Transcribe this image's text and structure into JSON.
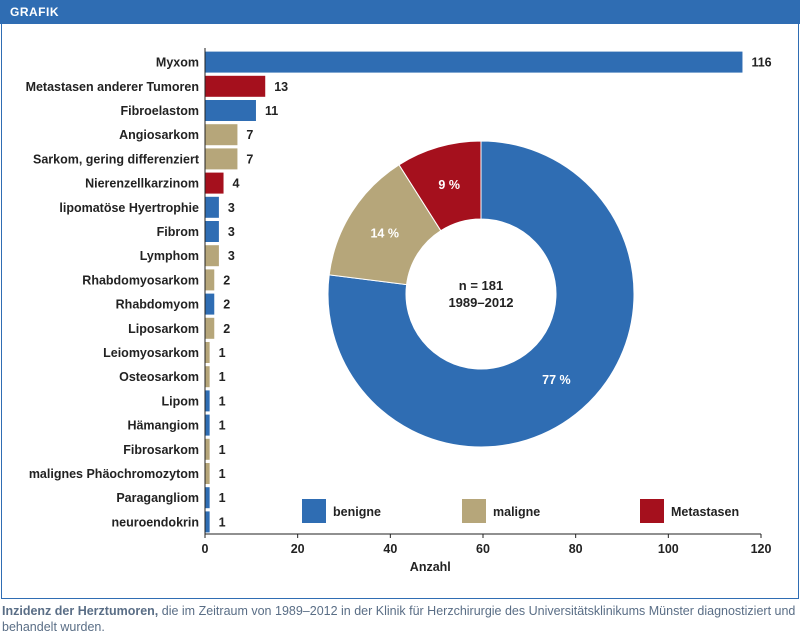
{
  "header": {
    "title": "GRAFIK"
  },
  "colors": {
    "benigne": "#2f6db3",
    "maligne": "#b6a67a",
    "metastasen": "#a5101d"
  },
  "chart_data": [
    {
      "type": "bar",
      "orientation": "horizontal",
      "categories": [
        "Myxom",
        "Metastasen anderer Tumoren",
        "Fibroelastom",
        "Angiosarkom",
        "Sarkom, gering differenziert",
        "Nierenzellkarzinom",
        "lipomatöse Hyertrophie",
        "Fibrom",
        "Lymphom",
        "Rhabdomyosarkom",
        "Rhabdomyom",
        "Liposarkom",
        "Leiomyosarkom",
        "Osteosarkom",
        "Lipom",
        "Hämangiom",
        "Fibrosarkom",
        "malignes Phäochromozytom",
        "Paragangliom",
        "neuroendokrin"
      ],
      "values": [
        116,
        13,
        11,
        7,
        7,
        4,
        3,
        3,
        3,
        2,
        2,
        2,
        1,
        1,
        1,
        1,
        1,
        1,
        1,
        1
      ],
      "groups": [
        "benigne",
        "metastasen",
        "benigne",
        "maligne",
        "maligne",
        "metastasen",
        "benigne",
        "benigne",
        "maligne",
        "maligne",
        "benigne",
        "maligne",
        "maligne",
        "maligne",
        "benigne",
        "benigne",
        "maligne",
        "maligne",
        "benigne",
        "benigne"
      ],
      "xlabel": "Anzahl",
      "xlim": [
        0,
        120
      ],
      "xticks": [
        0,
        20,
        40,
        60,
        80,
        100,
        120
      ]
    },
    {
      "type": "pie",
      "donut": true,
      "center_text": [
        "n = 181",
        "1989–2012"
      ],
      "slices": [
        {
          "label": "benigne",
          "value": 77,
          "text": "77 %"
        },
        {
          "label": "maligne",
          "value": 14,
          "text": "14 %"
        },
        {
          "label": "metastasen",
          "value": 9,
          "text": "9 %"
        }
      ],
      "legend": [
        {
          "key": "benigne",
          "label": "benigne"
        },
        {
          "key": "maligne",
          "label": "maligne"
        },
        {
          "key": "metastasen",
          "label": "Metastasen"
        }
      ]
    }
  ],
  "caption": {
    "bold": "Inzidenz der Herztumoren,",
    "text": " die im Zeitraum von 1989–2012 in der Klinik für Herzchirurgie des Universitätsklinikums Münster diagnostiziert und behandelt wurden."
  }
}
